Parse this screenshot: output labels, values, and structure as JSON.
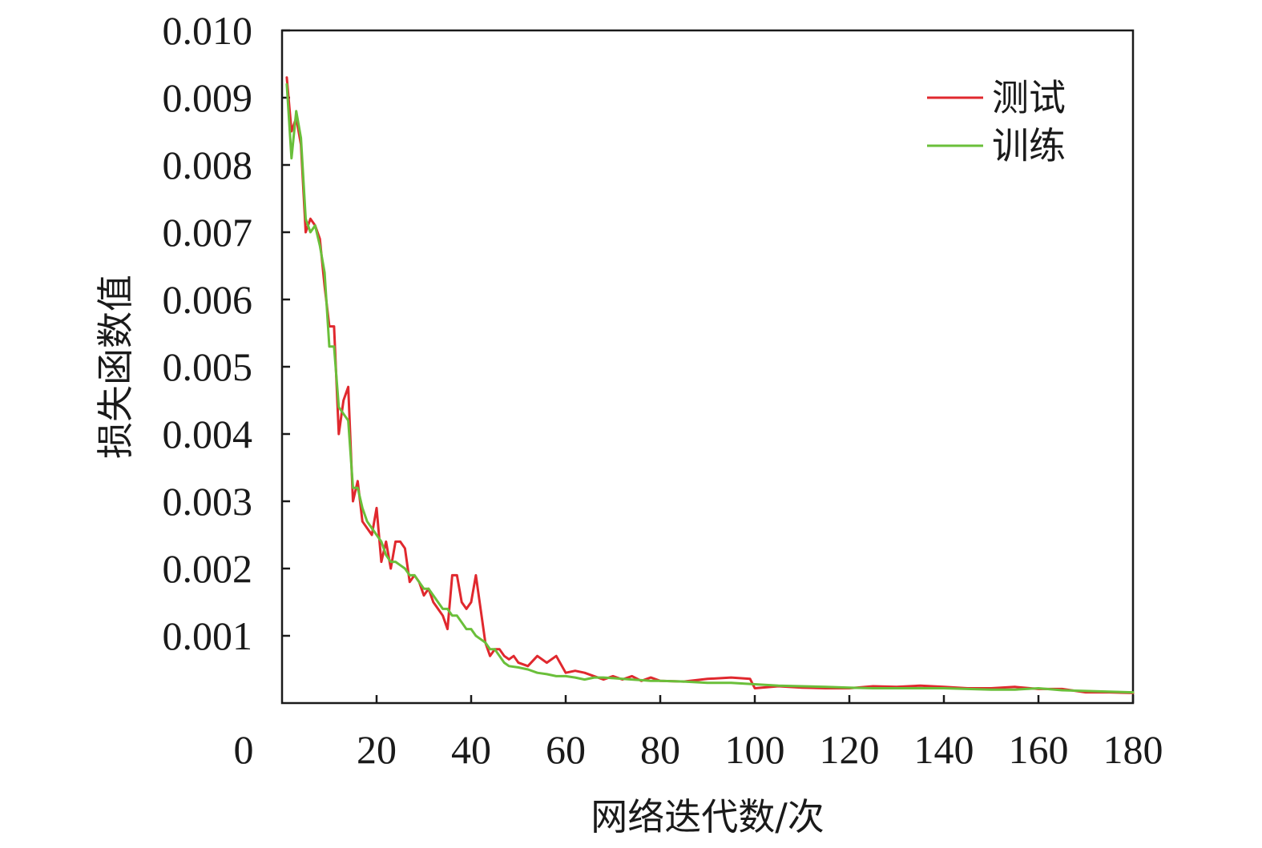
{
  "chart_data": {
    "type": "line",
    "title": "",
    "xlabel": "网络迭代数/次",
    "ylabel": "损失函数值",
    "xlim": [
      0,
      180
    ],
    "ylim": [
      0,
      0.01
    ],
    "x_ticks": [
      "0",
      "20",
      "40",
      "60",
      "80",
      "100",
      "120",
      "140",
      "160",
      "180"
    ],
    "y_ticks": [
      "0.001",
      "0.002",
      "0.003",
      "0.004",
      "0.005",
      "0.006",
      "0.007",
      "0.008",
      "0.009",
      "0.010"
    ],
    "grid": false,
    "legend_position": "top-right",
    "series": [
      {
        "name": "测试",
        "color": "#e0282e",
        "x": [
          1,
          2,
          3,
          4,
          5,
          6,
          7,
          8,
          9,
          10,
          11,
          12,
          13,
          14,
          15,
          16,
          17,
          18,
          19,
          20,
          21,
          22,
          23,
          24,
          25,
          26,
          27,
          28,
          29,
          30,
          31,
          32,
          33,
          34,
          35,
          36,
          37,
          38,
          39,
          40,
          41,
          42,
          43,
          44,
          45,
          46,
          47,
          48,
          49,
          50,
          52,
          54,
          56,
          58,
          60,
          62,
          64,
          66,
          68,
          70,
          72,
          74,
          76,
          78,
          80,
          85,
          90,
          95,
          99,
          100,
          105,
          110,
          115,
          120,
          125,
          130,
          135,
          140,
          145,
          150,
          155,
          160,
          165,
          170,
          175,
          180
        ],
        "y": [
          0.0093,
          0.0085,
          0.0087,
          0.0083,
          0.007,
          0.0072,
          0.0071,
          0.0069,
          0.0062,
          0.0056,
          0.0056,
          0.004,
          0.0045,
          0.0047,
          0.003,
          0.0033,
          0.0027,
          0.0026,
          0.0025,
          0.0029,
          0.0021,
          0.0024,
          0.002,
          0.0024,
          0.0024,
          0.0023,
          0.0018,
          0.0019,
          0.0018,
          0.0016,
          0.0017,
          0.0015,
          0.0014,
          0.0013,
          0.0011,
          0.0019,
          0.0019,
          0.0015,
          0.0014,
          0.0015,
          0.0019,
          0.0014,
          0.0009,
          0.0007,
          0.0008,
          0.0008,
          0.0007,
          0.00065,
          0.0007,
          0.0006,
          0.00055,
          0.0007,
          0.0006,
          0.0007,
          0.00045,
          0.00048,
          0.00045,
          0.0004,
          0.00035,
          0.0004,
          0.00035,
          0.0004,
          0.00033,
          0.00038,
          0.00033,
          0.00032,
          0.00036,
          0.00038,
          0.00036,
          0.00022,
          0.00025,
          0.00023,
          0.00022,
          0.00022,
          0.00025,
          0.00024,
          0.00026,
          0.00024,
          0.00022,
          0.00022,
          0.00024,
          0.00021,
          0.00021,
          0.00016,
          0.00016,
          0.00015
        ]
      },
      {
        "name": "训练",
        "color": "#6abf3a",
        "x": [
          1,
          2,
          3,
          4,
          5,
          6,
          7,
          8,
          9,
          10,
          11,
          12,
          13,
          14,
          15,
          16,
          17,
          18,
          19,
          20,
          21,
          22,
          23,
          24,
          25,
          26,
          27,
          28,
          29,
          30,
          31,
          32,
          33,
          34,
          35,
          36,
          37,
          38,
          39,
          40,
          41,
          42,
          43,
          44,
          45,
          46,
          47,
          48,
          50,
          52,
          54,
          56,
          58,
          60,
          62,
          64,
          66,
          68,
          70,
          72,
          74,
          76,
          78,
          80,
          85,
          90,
          95,
          100,
          105,
          110,
          115,
          120,
          125,
          130,
          135,
          140,
          145,
          150,
          155,
          160,
          165,
          170,
          175,
          180
        ],
        "y": [
          0.0092,
          0.0081,
          0.0088,
          0.0084,
          0.0072,
          0.007,
          0.0071,
          0.0068,
          0.0064,
          0.0053,
          0.0053,
          0.0044,
          0.0043,
          0.0042,
          0.0032,
          0.0032,
          0.0029,
          0.0027,
          0.0026,
          0.0025,
          0.0024,
          0.0022,
          0.0021,
          0.0021,
          0.00205,
          0.002,
          0.0019,
          0.0019,
          0.0018,
          0.0017,
          0.0017,
          0.0016,
          0.0015,
          0.0014,
          0.0014,
          0.0013,
          0.0013,
          0.0012,
          0.0011,
          0.0011,
          0.001,
          0.00095,
          0.0009,
          0.0008,
          0.0008,
          0.0007,
          0.0006,
          0.00055,
          0.00053,
          0.0005,
          0.00045,
          0.00043,
          0.0004,
          0.0004,
          0.00038,
          0.00035,
          0.00038,
          0.00038,
          0.00037,
          0.00036,
          0.00035,
          0.00034,
          0.00033,
          0.00033,
          0.00032,
          0.0003,
          0.0003,
          0.00028,
          0.00026,
          0.00025,
          0.00024,
          0.00023,
          0.00022,
          0.00022,
          0.00022,
          0.00022,
          0.00021,
          0.0002,
          0.0002,
          0.00022,
          0.00019,
          0.00018,
          0.00017,
          0.00016
        ]
      }
    ]
  }
}
